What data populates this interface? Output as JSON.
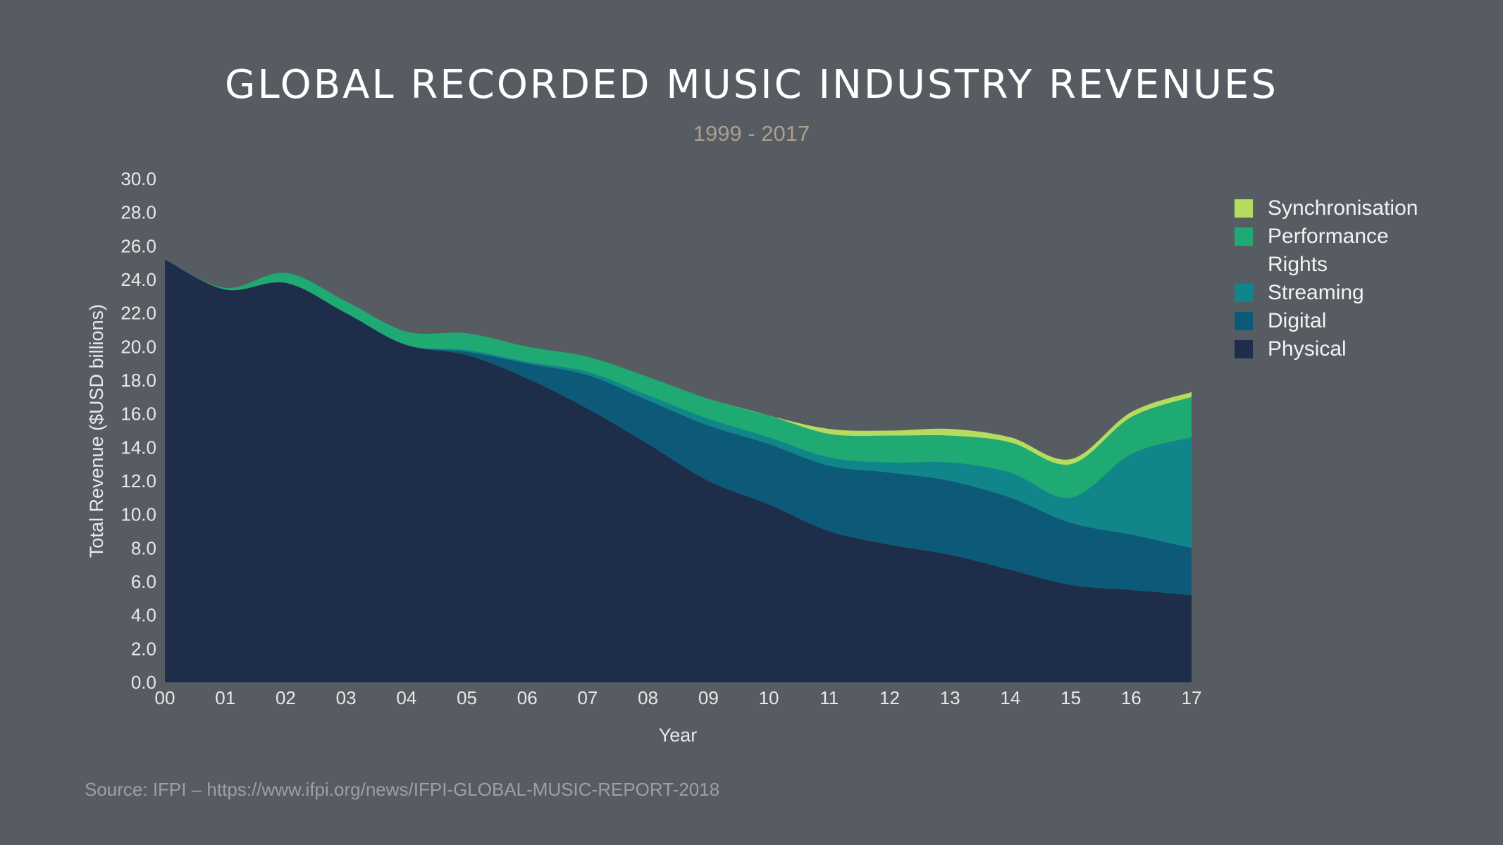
{
  "title": "GLOBAL RECORDED MUSIC INDUSTRY REVENUES",
  "subtitle": "1999 - 2017",
  "source": "Source: IFPI – https://www.ifpi.org/news/IFPI-GLOBAL-MUSIC-REPORT-2018",
  "colors": {
    "background": "#575c63",
    "Physical": "#1e2d4a",
    "Digital": "#0d5a78",
    "Streaming": "#11868a",
    "Performance Rights": "#1eaa72",
    "Synchronisation": "#b5dc5e"
  },
  "legend": [
    {
      "name": "Synchronisation",
      "color": "#b5dc5e"
    },
    {
      "name": "Performance Rights",
      "color": "#1eaa72"
    },
    {
      "name": "Streaming",
      "color": "#11868a"
    },
    {
      "name": "Digital",
      "color": "#0d5a78"
    },
    {
      "name": "Physical",
      "color": "#1e2d4a"
    }
  ],
  "chart_data": {
    "type": "area",
    "stacked": true,
    "title": "GLOBAL RECORDED MUSIC INDUSTRY REVENUES",
    "subtitle": "1999 - 2017",
    "xlabel": "Year",
    "ylabel": "Total Revenue ($USD billions)",
    "ylim": [
      0,
      30
    ],
    "yticks": [
      "0.0",
      "2.0",
      "4.0",
      "6.0",
      "8.0",
      "10.0",
      "12.0",
      "14.0",
      "16.0",
      "18.0",
      "20.0",
      "22.0",
      "24.0",
      "26.0",
      "28.0",
      "30.0"
    ],
    "categories": [
      "00",
      "01",
      "02",
      "03",
      "04",
      "05",
      "06",
      "07",
      "08",
      "09",
      "10",
      "11",
      "12",
      "13",
      "14",
      "15",
      "16",
      "17"
    ],
    "legend_position": "right",
    "grid": false,
    "series": [
      {
        "name": "Physical",
        "values": [
          25.2,
          23.4,
          23.8,
          22.0,
          20.1,
          19.5,
          18.1,
          16.3,
          14.2,
          12.0,
          10.6,
          9.0,
          8.2,
          7.6,
          6.7,
          5.8,
          5.5,
          5.2
        ]
      },
      {
        "name": "Digital",
        "values": [
          0.0,
          0.0,
          0.0,
          0.0,
          0.0,
          0.2,
          0.9,
          2.0,
          2.6,
          3.3,
          3.6,
          3.9,
          4.3,
          4.4,
          4.3,
          3.7,
          3.3,
          2.8
        ]
      },
      {
        "name": "Streaming",
        "values": [
          0.0,
          0.0,
          0.0,
          0.0,
          0.0,
          0.1,
          0.1,
          0.2,
          0.3,
          0.4,
          0.4,
          0.5,
          0.6,
          1.1,
          1.5,
          1.5,
          4.8,
          6.6
        ]
      },
      {
        "name": "Performance Rights",
        "values": [
          0.0,
          0.1,
          0.6,
          0.7,
          0.8,
          1.0,
          0.9,
          0.9,
          1.1,
          1.2,
          1.3,
          1.4,
          1.6,
          1.6,
          1.8,
          2.0,
          2.2,
          2.4
        ]
      },
      {
        "name": "Synchronisation",
        "values": [
          0.0,
          0.0,
          0.0,
          0.0,
          0.0,
          0.0,
          0.0,
          0.0,
          0.0,
          0.0,
          0.0,
          0.3,
          0.3,
          0.4,
          0.3,
          0.3,
          0.3,
          0.3
        ]
      }
    ]
  }
}
